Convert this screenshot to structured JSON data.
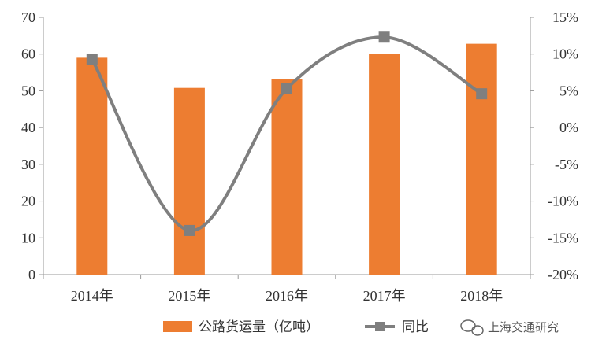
{
  "chart_data": {
    "type": "bar",
    "categories": [
      "2014年",
      "2015年",
      "2016年",
      "2017年",
      "2018年"
    ],
    "series": [
      {
        "name": "公路货运量（亿吨）",
        "type": "bar",
        "axis": "left",
        "values": [
          59,
          50.8,
          53.3,
          60,
          62.8
        ],
        "color": "#ed7d31"
      },
      {
        "name": "同比",
        "type": "line",
        "axis": "right",
        "values": [
          9.3,
          -14,
          5.3,
          12.3,
          4.6
        ],
        "color": "#7f7f7f"
      }
    ],
    "y_left": {
      "ylim": [
        0,
        70
      ],
      "ticks": [
        0,
        10,
        20,
        30,
        40,
        50,
        60,
        70
      ],
      "tick_labels": [
        "0",
        "10",
        "20",
        "30",
        "40",
        "50",
        "60",
        "70"
      ]
    },
    "y_right": {
      "ylim": [
        -20,
        15
      ],
      "ticks": [
        -20,
        -15,
        -10,
        -5,
        0,
        5,
        10,
        15
      ],
      "tick_labels": [
        "-20%",
        "-15%",
        "-10%",
        "-5%",
        "0%",
        "5%",
        "10%",
        "15%"
      ]
    },
    "grid": false,
    "legend_position": "bottom"
  },
  "watermark": {
    "text": "上海交通研究"
  }
}
